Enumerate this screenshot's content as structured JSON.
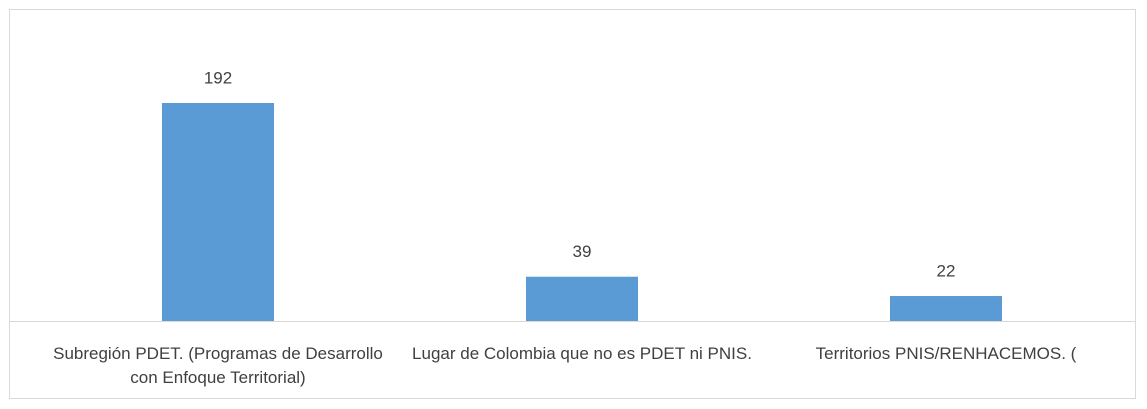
{
  "chart_data": {
    "type": "bar",
    "categories": [
      "Subregión PDET. (Programas de Desarrollo con Enfoque Territorial)",
      "Lugar de Colombia que no es PDET ni PNIS.",
      "Territorios PNIS/RENHACEMOS. ("
    ],
    "values": [
      192,
      39,
      22
    ],
    "color": "#5b9bd5"
  }
}
